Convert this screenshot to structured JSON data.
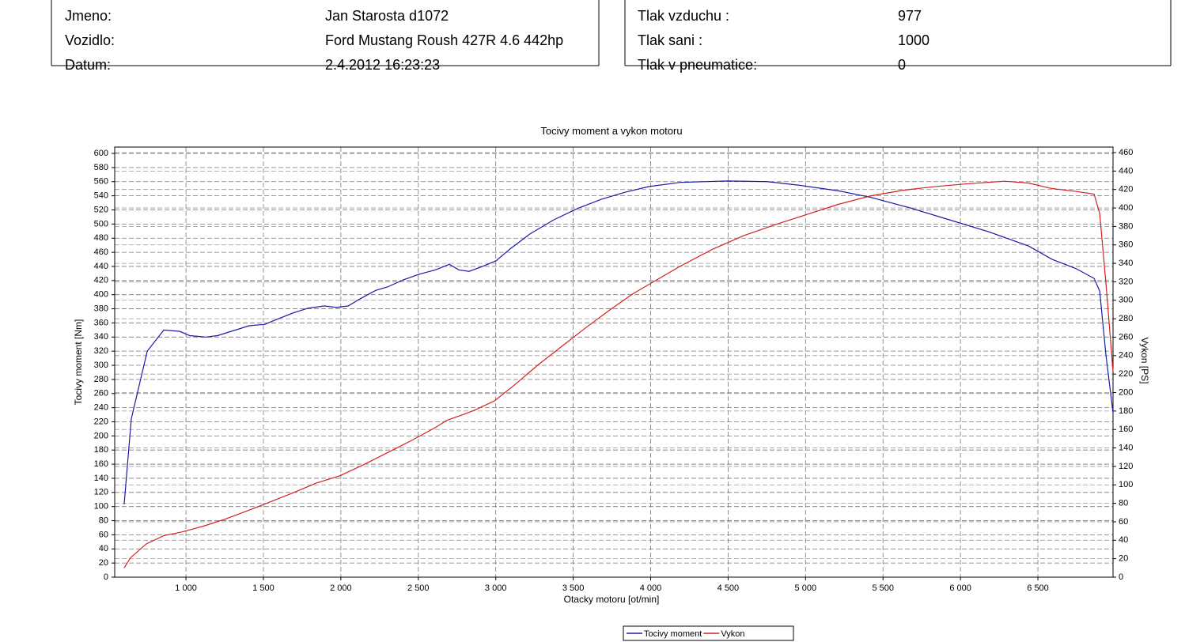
{
  "header": {
    "left": [
      {
        "label": "Jmeno:",
        "value": "Jan Starosta d1072"
      },
      {
        "label": "Vozidlo:",
        "value": "Ford Mustang Roush 427R 4.6 442hp"
      },
      {
        "label": "Datum:",
        "value": "2.4.2012 16:23:23"
      }
    ],
    "right": [
      {
        "label": "Tlak vzduchu :",
        "value": "977"
      },
      {
        "label": "Tlak sani :",
        "value": "1000"
      },
      {
        "label": "Tlak v pneumatice:",
        "value": "0"
      }
    ]
  },
  "chart_data": {
    "type": "line",
    "title": "Tocivy moment a vykon motoru",
    "x_label": "Otacky motoru [ot/min]",
    "y_label": "Tocivy moment [Nm]",
    "y2_label": "Vykon [PS]",
    "xlim": [
      540,
      6985
    ],
    "ylim": [
      0,
      609
    ],
    "y2lim": [
      0,
      466
    ],
    "grid": true,
    "xticks": [
      {
        "value": 1000,
        "label": "1 000"
      },
      {
        "value": 1500,
        "label": "1 500"
      },
      {
        "value": 2000,
        "label": "2 000"
      },
      {
        "value": 2500,
        "label": "2 500"
      },
      {
        "value": 3000,
        "label": "3 000"
      },
      {
        "value": 3500,
        "label": "3 500"
      },
      {
        "value": 4000,
        "label": "4 000"
      },
      {
        "value": 4500,
        "label": "4 500"
      },
      {
        "value": 5000,
        "label": "5 000"
      },
      {
        "value": 5500,
        "label": "5 500"
      },
      {
        "value": 6000,
        "label": "6 000"
      },
      {
        "value": 6500,
        "label": "6 500"
      }
    ],
    "yticks": [
      0,
      20,
      40,
      60,
      80,
      100,
      120,
      140,
      160,
      180,
      200,
      220,
      240,
      260,
      280,
      300,
      320,
      340,
      360,
      380,
      400,
      420,
      440,
      460,
      480,
      500,
      520,
      540,
      560,
      580,
      600
    ],
    "y2ticks": [
      0,
      20,
      40,
      60,
      80,
      100,
      120,
      140,
      160,
      180,
      200,
      220,
      240,
      260,
      280,
      300,
      320,
      340,
      360,
      380,
      400,
      420,
      440,
      460
    ],
    "series": [
      {
        "name": "Tocivy moment",
        "color": "#1a1aa8",
        "x": [
          601,
          647,
          750,
          857,
          960,
          1025,
          1127,
          1204,
          1306,
          1408,
          1510,
          1587,
          1690,
          1790,
          1893,
          1970,
          2047,
          2123,
          2225,
          2302,
          2404,
          2506,
          2609,
          2700,
          2762,
          2828,
          2915,
          3002,
          3094,
          3221,
          3375,
          3528,
          3681,
          3834,
          3987,
          4192,
          4498,
          4753,
          4958,
          5213,
          5417,
          5673,
          5928,
          6183,
          6439,
          6592,
          6745,
          6863,
          6899,
          6940,
          6985
        ],
        "values": [
          103,
          224,
          320,
          350,
          348,
          342,
          340,
          342,
          349,
          356,
          358,
          365,
          374,
          381,
          384,
          382,
          384,
          394,
          406,
          411,
          421,
          429,
          435,
          443,
          435,
          433,
          440,
          448,
          465,
          486,
          506,
          522,
          535,
          545,
          553,
          559,
          561,
          560,
          555,
          547,
          538,
          523,
          506,
          489,
          469,
          450,
          437,
          423,
          405,
          313,
          233
        ]
      },
      {
        "name": "Vykon",
        "color": "#d42020",
        "axis": "y2",
        "x": [
          601,
          642,
          744,
          857,
          974,
          1127,
          1255,
          1383,
          1536,
          1715,
          1842,
          1996,
          2149,
          2302,
          2455,
          2609,
          2685,
          2787,
          2864,
          2992,
          3119,
          3273,
          3426,
          3579,
          3732,
          3885,
          4038,
          4192,
          4396,
          4600,
          4805,
          5009,
          5213,
          5417,
          5622,
          5826,
          6030,
          6285,
          6439,
          6592,
          6745,
          6863,
          6899,
          6940,
          6985
        ],
        "values": [
          10,
          21,
          36,
          45,
          49,
          56,
          63,
          71,
          81,
          93,
          102,
          110,
          122,
          135,
          148,
          162,
          170,
          176,
          181,
          191,
          208,
          230,
          250,
          270,
          289,
          307,
          322,
          337,
          355,
          370,
          382,
          393,
          404,
          413,
          419,
          423,
          426,
          429,
          427,
          421,
          418,
          415,
          394,
          317,
          223
        ]
      }
    ]
  }
}
